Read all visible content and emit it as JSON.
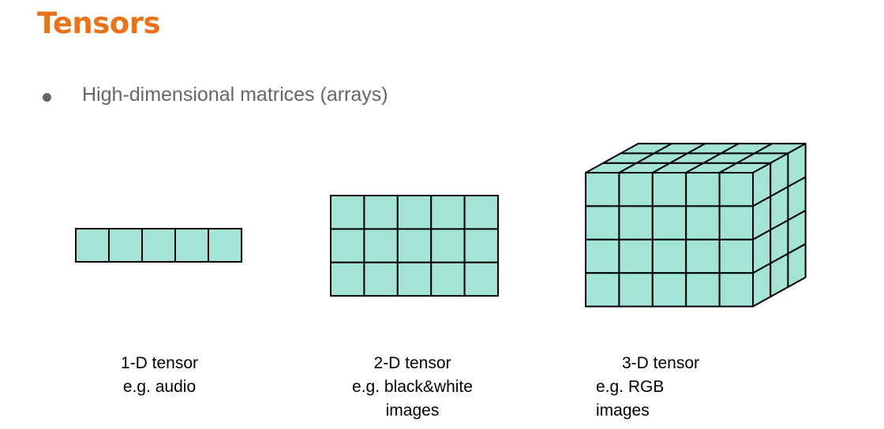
{
  "slide": {
    "title": "Tensors",
    "bullet": "High-dimensional matrices (arrays)"
  },
  "diagrams": [
    {
      "id": "tensor-1d",
      "caption_lines": [
        "1-D tensor",
        "e.g. audio"
      ],
      "rows": 1,
      "cols": 5
    },
    {
      "id": "tensor-2d",
      "caption_lines": [
        "2-D tensor",
        "e.g. black&white",
        "images"
      ],
      "rows": 3,
      "cols": 5
    },
    {
      "id": "tensor-3d",
      "caption_lines": [
        "3-D tensor",
        "e.g. RGB",
        "images"
      ],
      "rows": 4,
      "cols": 5,
      "depth": 3
    }
  ],
  "colors": {
    "title": "#e8731a",
    "cell_fill": "#a3e4d7",
    "cell_stroke": "#000000",
    "bullet_text": "#666666"
  }
}
